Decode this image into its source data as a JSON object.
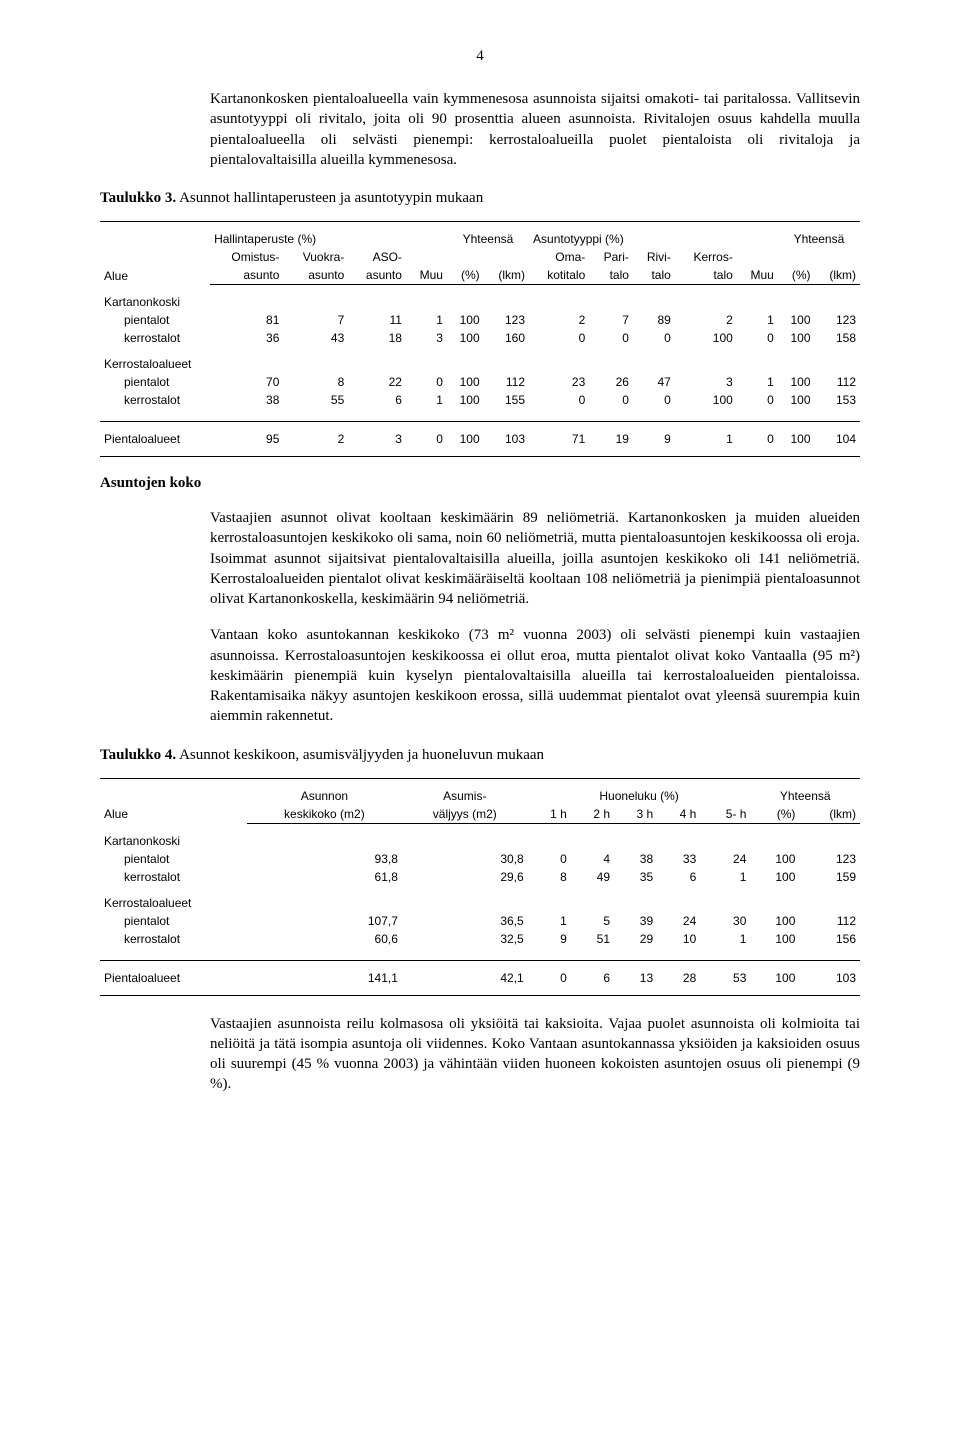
{
  "pageNumber": "4",
  "para1": "Kartanonkosken pientaloalueella vain kymmenesosa asunnoista sijaitsi omakoti- tai paritalossa. Vallitsevin asuntotyyppi oli rivitalo, joita oli 90 prosenttia alueen asunnoista. Rivitalojen osuus kahdella muulla pientaloalueella oli selvästi pienempi: kerrostaloalueilla puolet pientaloista oli rivitaloja ja pientalovaltaisilla alueilla kymmenesosa.",
  "table3": {
    "captionBold": "Taulukko 3.",
    "captionRest": " Asunnot hallintaperusteen ja asuntotyypin mukaan",
    "h_alue": "Alue",
    "h_hallinta": "Hallintaperuste (%)",
    "h_omistus1": "Omistus-",
    "h_omistus2": "asunto",
    "h_vuokra1": "Vuokra-",
    "h_vuokra2": "asunto",
    "h_aso1": "ASO-",
    "h_aso2": "asunto",
    "h_muu": "Muu",
    "h_yht": "Yhteensä",
    "h_pct": "(%)",
    "h_lkm": "(lkm)",
    "h_asunto": "Asuntotyyppi (%)",
    "h_oma1": "Oma-",
    "h_oma2": "kotitalo",
    "h_pari1": "Pari-",
    "h_pari2": "talo",
    "h_rivi1": "Rivi-",
    "h_rivi2": "talo",
    "h_kerros1": "Kerros-",
    "h_kerros2": "talo",
    "groups": [
      {
        "label": "Kartanonkoski",
        "rows": [
          {
            "name": "pientalot",
            "v": [
              "81",
              "7",
              "11",
              "1",
              "100",
              "123",
              "2",
              "7",
              "89",
              "2",
              "1",
              "100",
              "123"
            ]
          },
          {
            "name": "kerrostalot",
            "v": [
              "36",
              "43",
              "18",
              "3",
              "100",
              "160",
              "0",
              "0",
              "0",
              "100",
              "0",
              "100",
              "158"
            ]
          }
        ]
      },
      {
        "label": "Kerrostaloalueet",
        "rows": [
          {
            "name": "pientalot",
            "v": [
              "70",
              "8",
              "22",
              "0",
              "100",
              "112",
              "23",
              "26",
              "47",
              "3",
              "1",
              "100",
              "112"
            ]
          },
          {
            "name": "kerrostalot",
            "v": [
              "38",
              "55",
              "6",
              "1",
              "100",
              "155",
              "0",
              "0",
              "0",
              "100",
              "0",
              "100",
              "153"
            ]
          }
        ]
      }
    ],
    "footer": {
      "name": "Pientaloalueet",
      "v": [
        "95",
        "2",
        "3",
        "0",
        "100",
        "103",
        "71",
        "19",
        "9",
        "1",
        "0",
        "100",
        "104"
      ]
    }
  },
  "heading1": "Asuntojen koko",
  "para2": "Vastaajien asunnot olivat kooltaan keskimäärin 89 neliömetriä. Kartanonkosken ja muiden alueiden kerrostaloasuntojen keskikoko oli sama, noin 60 neliömetriä, mutta pientaloasuntojen keskikoossa oli eroja. Isoimmat asunnot sijaitsivat pientalovaltaisilla alueilla, joilla asuntojen keskikoko oli 141 neliömetriä. Kerrostaloalueiden pientalot olivat keskimääräiseltä kooltaan 108 neliömetriä ja pienimpiä pientaloasunnot olivat Kartanonkoskella, keskimäärin 94 neliömetriä.",
  "para3": "Vantaan koko asuntokannan keskikoko (73 m² vuonna 2003) oli selvästi pienempi kuin vastaajien asunnoissa. Kerrostaloasuntojen keskikoossa ei ollut eroa, mutta pientalot olivat koko Vantaalla (95 m²) keskimäärin pienempiä kuin kyselyn pientalovaltaisilla alueilla tai kerrostaloalueiden pientaloissa. Rakentamisaika näkyy asuntojen keskikoon erossa, sillä uudemmat pientalot ovat yleensä suurempia kuin aiemmin rakennetut.",
  "table4": {
    "captionBold": "Taulukko 4.",
    "captionRest": " Asunnot keskikoon, asumisväljyyden ja huoneluvun mukaan",
    "h_alue": "Alue",
    "h_asunnon1": "Asunnon",
    "h_asunnon2": "keskikoko (m2)",
    "h_asumis1": "Asumis-",
    "h_asumis2": "väljyys (m2)",
    "h_huoneluku": "Huoneluku (%)",
    "h_1h": "1 h",
    "h_2h": "2 h",
    "h_3h": "3 h",
    "h_4h": "4 h",
    "h_5h": "5- h",
    "h_yht": "Yhteensä",
    "h_pct": "(%)",
    "h_lkm": "(lkm)",
    "groups": [
      {
        "label": "Kartanonkoski",
        "rows": [
          {
            "name": "pientalot",
            "v": [
              "93,8",
              "30,8",
              "0",
              "4",
              "38",
              "33",
              "24",
              "100",
              "123"
            ]
          },
          {
            "name": "kerrostalot",
            "v": [
              "61,8",
              "29,6",
              "8",
              "49",
              "35",
              "6",
              "1",
              "100",
              "159"
            ]
          }
        ]
      },
      {
        "label": "Kerrostaloalueet",
        "rows": [
          {
            "name": "pientalot",
            "v": [
              "107,7",
              "36,5",
              "1",
              "5",
              "39",
              "24",
              "30",
              "100",
              "112"
            ]
          },
          {
            "name": "kerrostalot",
            "v": [
              "60,6",
              "32,5",
              "9",
              "51",
              "29",
              "10",
              "1",
              "100",
              "156"
            ]
          }
        ]
      }
    ],
    "footer": {
      "name": "Pientaloalueet",
      "v": [
        "141,1",
        "42,1",
        "0",
        "6",
        "13",
        "28",
        "53",
        "100",
        "103"
      ]
    }
  },
  "para4": "Vastaajien asunnoista reilu kolmasosa oli yksiöitä tai kaksioita. Vajaa puolet asunnoista oli kolmioita tai neliöitä ja tätä isompia asuntoja oli viidennes. Koko Vantaan asuntokannassa yksiöiden ja kaksioiden osuus oli suurempi (45 % vuonna 2003) ja vähintään viiden huoneen kokoisten asuntojen osuus oli pienempi (9 %)."
}
